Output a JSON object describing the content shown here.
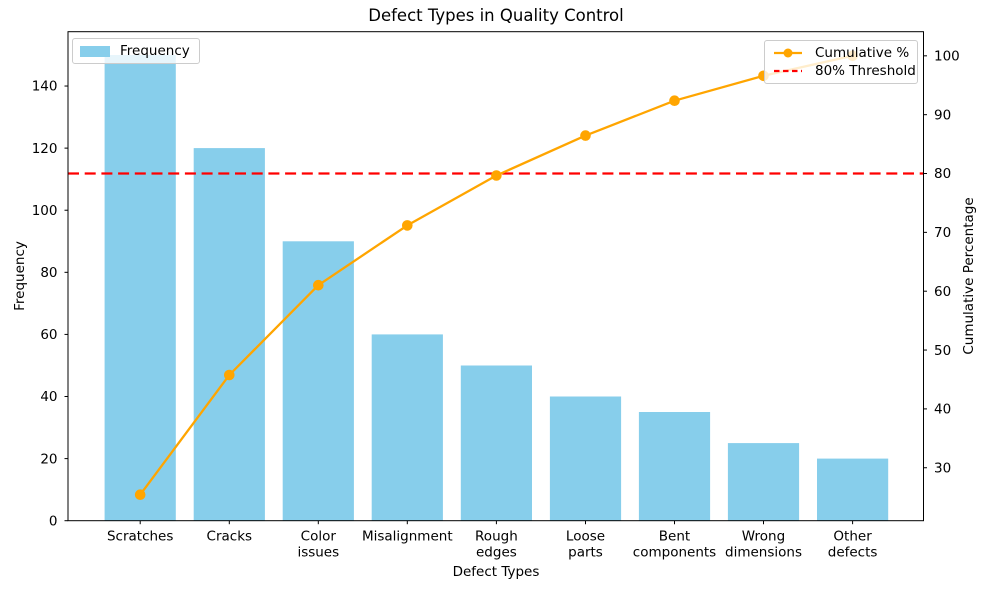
{
  "title": "Defect Types in Quality Control",
  "axes": {
    "x_label": "Defect Types",
    "y_left_label": "Frequency",
    "y_right_label": "Cumulative Percentage"
  },
  "legends": {
    "frequency_label": "Frequency",
    "cumulative_label": "Cumulative %",
    "threshold_label": "80% Threshold"
  },
  "colors": {
    "bar": "#87CEEB",
    "line": "#FFA500",
    "threshold": "#FF0000",
    "axis": "#000000",
    "text": "#000000"
  },
  "chart_data": {
    "type": "bar",
    "subtype": "pareto-combo",
    "title": "Defect Types in Quality Control",
    "xlabel": "Defect Types",
    "ylabel_left": "Frequency",
    "ylabel_right": "Cumulative Percentage",
    "categories": [
      "Scratches",
      "Cracks",
      "Color issues",
      "Misalignment",
      "Rough edges",
      "Loose parts",
      "Bent components",
      "Wrong dimensions",
      "Other defects"
    ],
    "series": [
      {
        "name": "Frequency",
        "type": "bar",
        "axis": "left",
        "color": "#87CEEB",
        "values": [
          150,
          120,
          90,
          60,
          50,
          40,
          35,
          25,
          20
        ]
      },
      {
        "name": "Cumulative %",
        "type": "line",
        "axis": "right",
        "color": "#FFA500",
        "marker": "circle",
        "values": [
          25.42,
          45.76,
          61.02,
          71.19,
          79.66,
          86.44,
          92.37,
          96.61,
          100.0
        ]
      }
    ],
    "threshold_line": {
      "label": "80% Threshold",
      "value": 80,
      "axis": "right",
      "color": "#FF0000",
      "style": "dashed"
    },
    "y_left_ticks": [
      0,
      20,
      40,
      60,
      80,
      100,
      120,
      140
    ],
    "y_right_ticks": [
      30,
      40,
      50,
      60,
      70,
      80,
      90,
      100
    ],
    "ylim_left": [
      0,
      157.5
    ],
    "ylim_right": [
      21.0,
      104.1
    ],
    "grid": false,
    "legend_positions": {
      "frequency": "upper left",
      "cumulative": "upper right"
    }
  }
}
